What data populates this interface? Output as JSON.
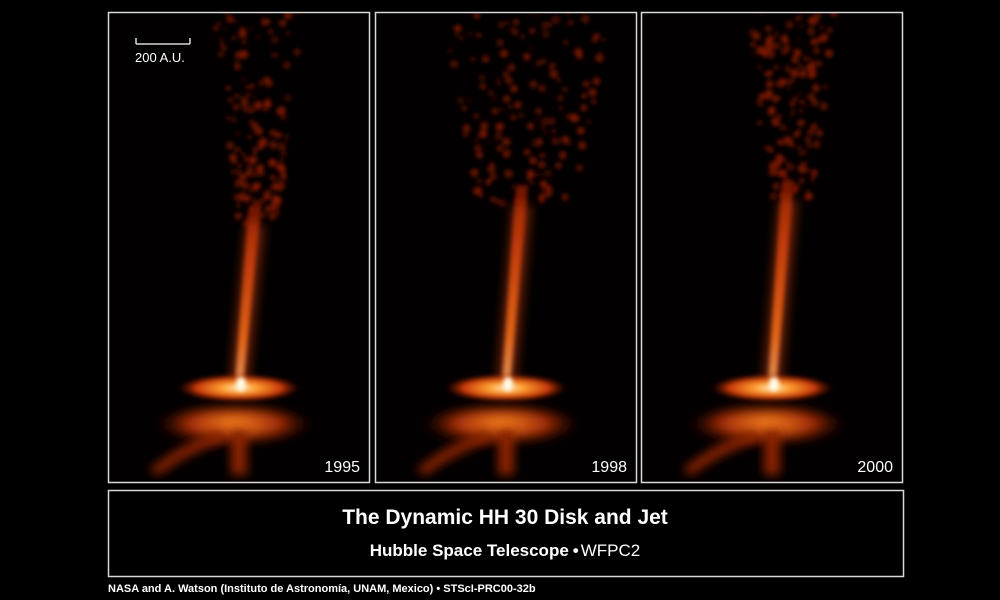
{
  "scale_label": "200 A.U.",
  "panels": [
    {
      "year": "1995"
    },
    {
      "year": "1998"
    },
    {
      "year": "2000"
    }
  ],
  "title": "The Dynamic HH 30 Disk and Jet",
  "subtitle": {
    "main": "Hubble Space Telescope",
    "separator": "•",
    "instrument": "WFPC2"
  },
  "credit": "NASA and A. Watson (Instituto de Astronomía, UNAM, Mexico) • STScI-PRC00-32b"
}
